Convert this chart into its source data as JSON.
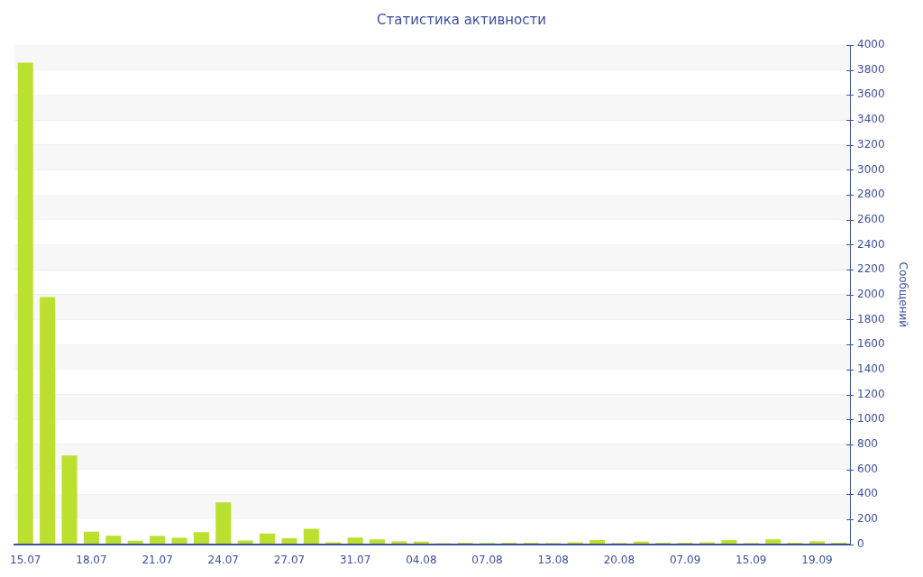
{
  "chart_data": {
    "type": "bar",
    "title": "Статистика активности",
    "ylabel": "Сообщений",
    "categories": [
      "15.07",
      null,
      null,
      "18.07",
      null,
      null,
      "21.07",
      null,
      null,
      "24.07",
      null,
      null,
      "27.07",
      null,
      null,
      "31.07",
      null,
      null,
      "04.08",
      null,
      null,
      "07.08",
      null,
      null,
      "13.08",
      null,
      null,
      "20.08",
      null,
      null,
      "07.09",
      null,
      null,
      "15.09",
      null,
      null,
      "19.09",
      null
    ],
    "values": [
      3860,
      1980,
      710,
      100,
      68,
      27,
      65,
      51,
      97,
      335,
      29,
      85,
      48,
      124,
      15,
      53,
      39,
      22,
      20,
      8,
      12,
      10,
      12,
      12,
      10,
      15,
      33,
      10,
      20,
      12,
      12,
      15,
      33,
      10,
      38,
      12,
      22,
      12
    ],
    "color": "#bbe02f",
    "ylim": [
      0,
      4000
    ],
    "yticks": [
      0,
      200,
      400,
      600,
      800,
      1000,
      1200,
      1400,
      1600,
      1800,
      2000,
      2200,
      2400,
      2600,
      2800,
      3000,
      3200,
      3400,
      3600,
      3800,
      4000
    ],
    "grid": "y"
  }
}
